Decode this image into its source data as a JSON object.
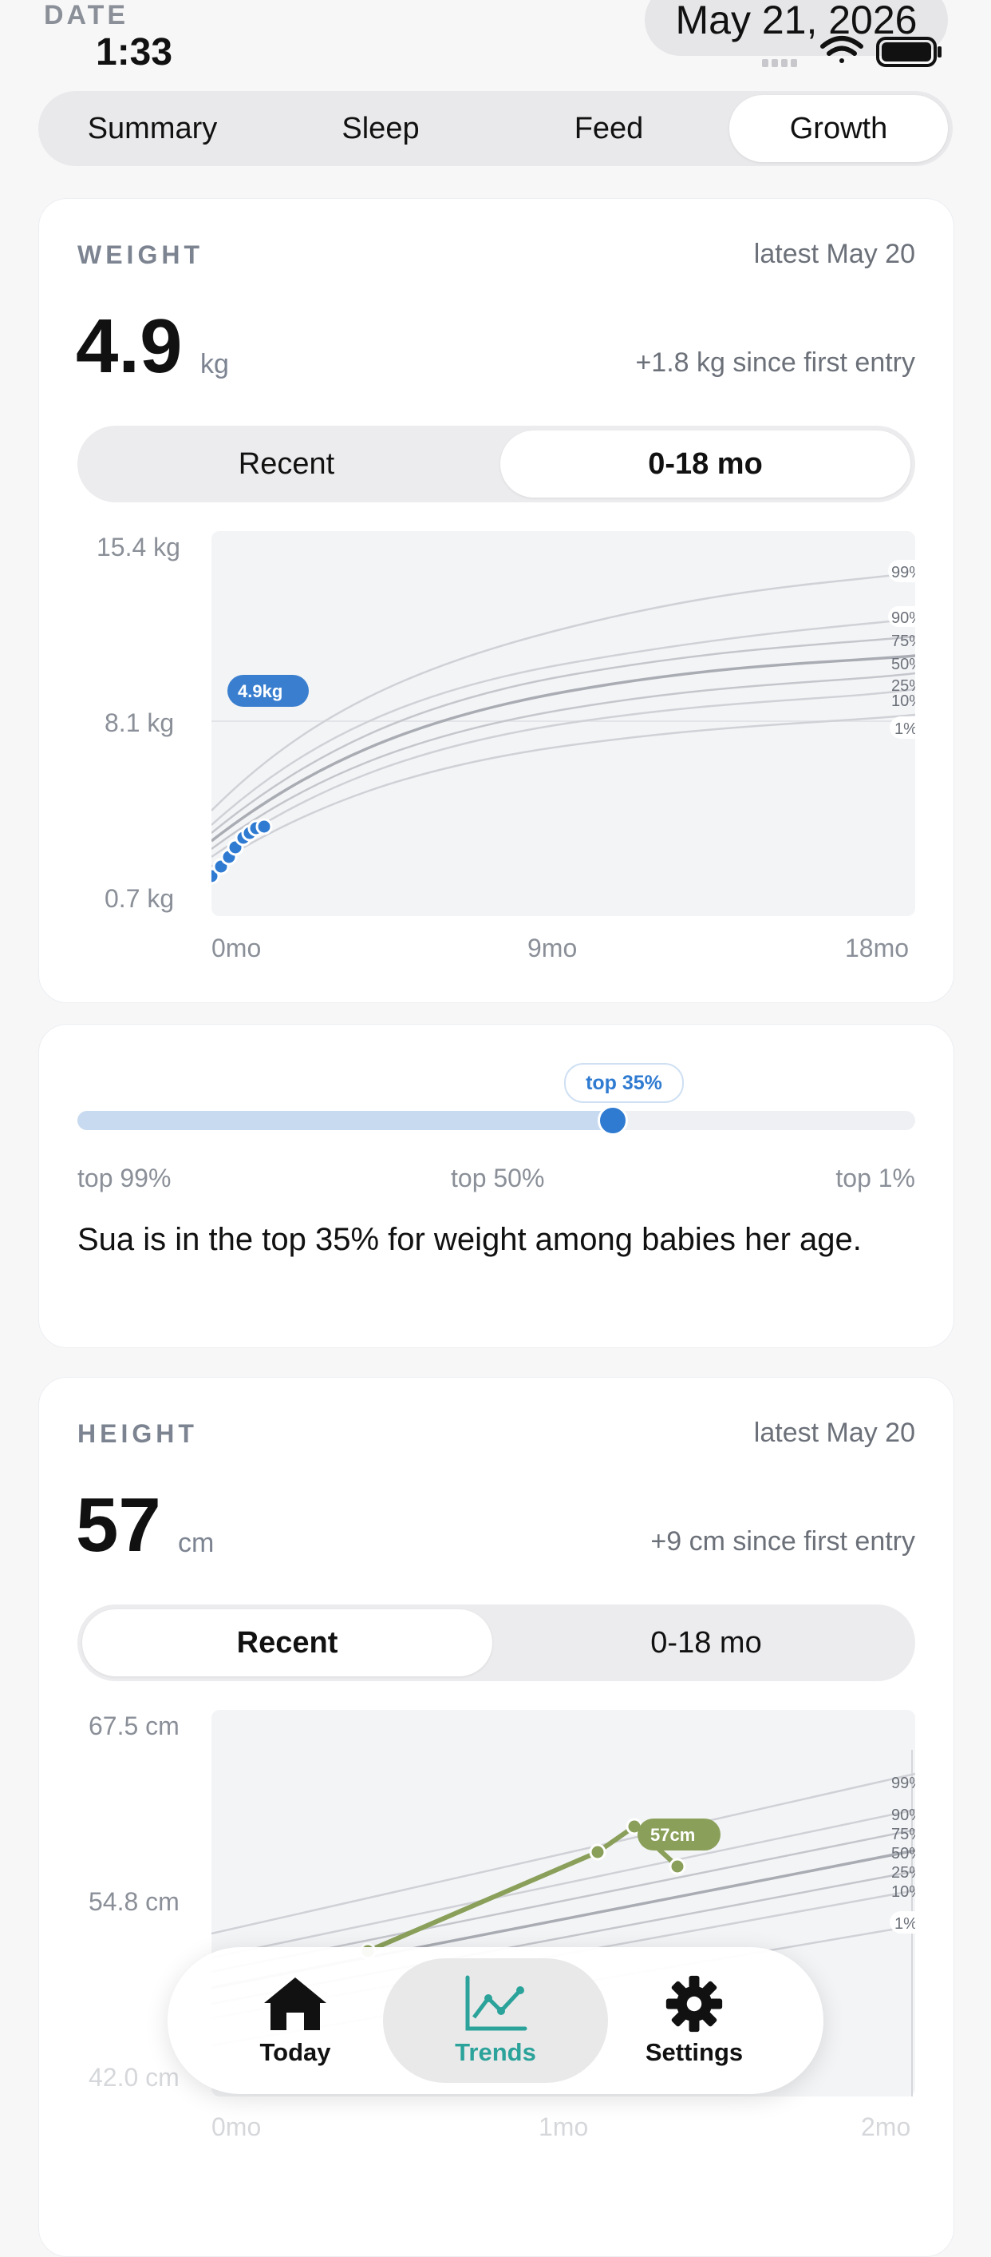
{
  "status_bar": {
    "date_label": "DATE",
    "time": "1:33",
    "date": "May 21, 2026",
    "icons": [
      "signal-icon",
      "wifi-icon",
      "battery-icon"
    ]
  },
  "top_tabs": {
    "items": [
      {
        "label": "Summary",
        "active": false
      },
      {
        "label": "Sleep",
        "active": false
      },
      {
        "label": "Feed",
        "active": false
      },
      {
        "label": "Growth",
        "active": true
      }
    ]
  },
  "weight": {
    "section_label": "WEIGHT",
    "latest": "latest May 20",
    "value": "4.9",
    "unit": "kg",
    "change": "+1.8 kg since first entry",
    "range_options": [
      {
        "label": "Recent",
        "active": false
      },
      {
        "label": "0-18 mo",
        "active": true
      }
    ],
    "y_ticks": [
      "15.4 kg",
      "8.1 kg",
      "0.7 kg"
    ],
    "x_ticks": [
      "0mo",
      "9mo",
      "18mo"
    ],
    "percentile_labels": [
      "99%",
      "90%",
      "75%",
      "50%",
      "25%",
      "10%",
      "1%"
    ],
    "marker_label": "4.9kg"
  },
  "percentile": {
    "badge": "top 35%",
    "fill_percent": 65,
    "scale_labels": [
      "top 99%",
      "top 50%",
      "top 1%"
    ],
    "description": "Sua is in the top 35% for weight among babies her age."
  },
  "height": {
    "section_label": "HEIGHT",
    "latest": "latest May 20",
    "value": "57",
    "unit": "cm",
    "change": "+9 cm since first entry",
    "range_options": [
      {
        "label": "Recent",
        "active": true
      },
      {
        "label": "0-18 mo",
        "active": false
      }
    ],
    "y_ticks": [
      "67.5 cm",
      "54.8 cm",
      "42.0 cm"
    ],
    "x_ticks": [
      "0mo",
      "1mo",
      "2mo"
    ],
    "percentile_labels": [
      "99%",
      "90%",
      "75%",
      "50%",
      "25%",
      "10%",
      "1%"
    ],
    "marker_label": "57cm"
  },
  "tab_bar": {
    "items": [
      {
        "label": "Today",
        "icon": "home-icon",
        "active": false
      },
      {
        "label": "Trends",
        "icon": "chart-icon",
        "active": true
      },
      {
        "label": "Settings",
        "icon": "gear-icon",
        "active": false
      }
    ]
  },
  "colors": {
    "weight_accent": "#3a7fcf",
    "height_accent": "#8aa05a",
    "trends_accent": "#2ba39a"
  }
}
